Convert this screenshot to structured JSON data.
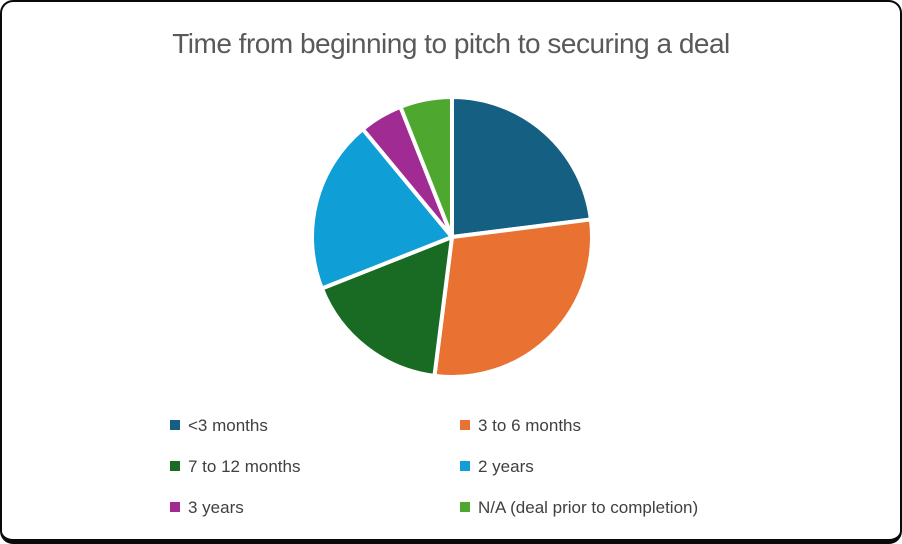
{
  "chart_data": {
    "type": "pie",
    "title": "Time from beginning to pitch to securing a deal",
    "labels": [
      "<3 months",
      "3 to 6 months",
      "7 to 12 months",
      "2 years",
      "3 years",
      "N/A (deal prior to completion)"
    ],
    "values_percent": [
      23,
      29,
      17,
      20,
      5,
      6
    ],
    "colors": [
      "#156082",
      "#e97132",
      "#196b24",
      "#0f9ed5",
      "#a02b93",
      "#4ea72e"
    ],
    "start_angle_deg": 0,
    "direction": "clockwise",
    "slice_border_color": "#ffffff",
    "legend_position": "bottom",
    "legend_columns": 2,
    "title_color": "#595959",
    "legend_text_color": "#404040"
  }
}
